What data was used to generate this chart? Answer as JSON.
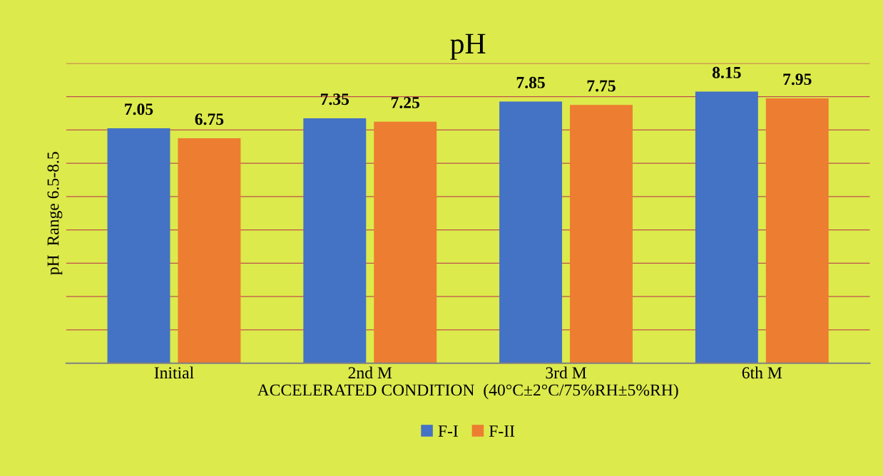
{
  "chart_data": {
    "type": "bar",
    "title": "pH",
    "xlabel": "ACCELERATED CONDITION  (40°C±2°C/75%RH±5%RH)",
    "ylabel": "pH  Range 6.5-8.5",
    "categories": [
      "Initial",
      "2nd M",
      "3rd M",
      "6th M"
    ],
    "series": [
      {
        "name": "F-I",
        "color": "#4472c4",
        "values": [
          7.05,
          7.35,
          7.85,
          8.15
        ]
      },
      {
        "name": "F-II",
        "color": "#ed7d31",
        "values": [
          6.75,
          7.25,
          7.75,
          7.95
        ]
      }
    ],
    "data_labels": true,
    "ylim": [
      0,
      9
    ],
    "yticks": [
      {
        "value": 0,
        "label": null
      },
      {
        "value": 1,
        "label": null
      },
      {
        "value": 2,
        "label": null
      },
      {
        "value": 3,
        "label": null
      },
      {
        "value": 4,
        "label": null
      },
      {
        "value": 5,
        "label": null
      },
      {
        "value": 6,
        "label": null
      },
      {
        "value": 7,
        "label": null
      },
      {
        "value": 8,
        "label": null
      },
      {
        "value": 9,
        "label": null
      }
    ],
    "tick_labels": "x",
    "grid": "y",
    "legend": "bottom"
  }
}
